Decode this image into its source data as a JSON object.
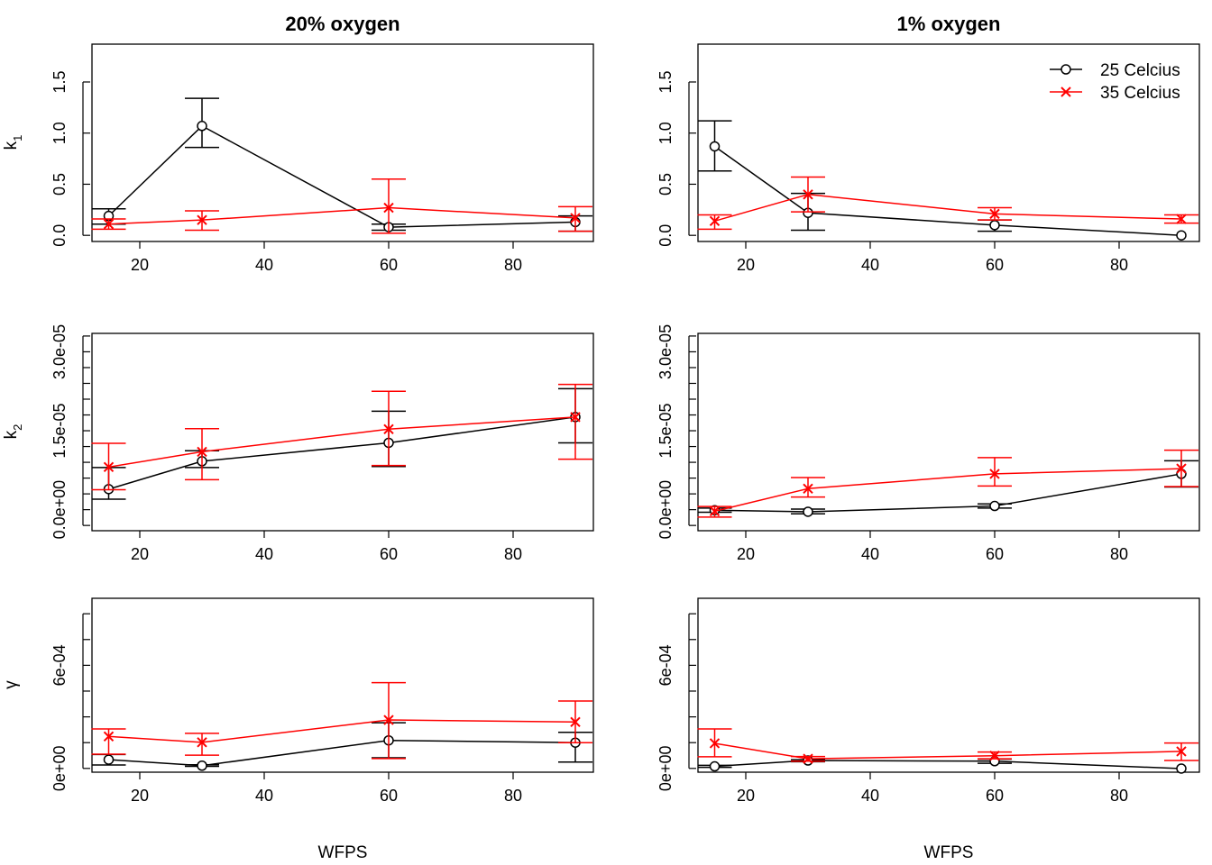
{
  "figure": {
    "col_titles": [
      "20% oxygen",
      "1% oxygen"
    ],
    "row_labels": [
      {
        "main": "k",
        "sub": "1"
      },
      {
        "main": "k",
        "sub": "2"
      },
      {
        "main": "γ",
        "sub": ""
      }
    ],
    "xlabel": "WFPS",
    "legend": {
      "placement": "top-right",
      "panel": "1% oxygen / k1",
      "entries": [
        "25 Celcius",
        "35 Celcius"
      ]
    },
    "colors": {
      "25C": "#000000",
      "35C": "#ff0000"
    }
  },
  "chart_data": [
    {
      "type": "line",
      "panel": "20% oxygen / k1",
      "x": [
        15,
        30,
        60,
        90
      ],
      "xlim": [
        12,
        93
      ],
      "xticks": [
        20,
        40,
        60,
        80
      ],
      "xtick_labels": [
        "20",
        "40",
        "60",
        "80"
      ],
      "ylim": [
        -0.06,
        1.87
      ],
      "yticks": [
        0,
        0.5,
        1.0,
        1.5
      ],
      "ytick_labels": [
        "0.0",
        "0.5",
        "1.0",
        "1.5"
      ],
      "series": [
        {
          "name": "25 Celcius",
          "marker": "circle",
          "y": [
            0.19,
            1.07,
            0.08,
            0.13
          ],
          "lower": [
            0.11,
            0.86,
            0.05,
            0.04
          ],
          "upper": [
            0.26,
            1.34,
            0.11,
            0.19
          ]
        },
        {
          "name": "35 Celcius",
          "marker": "cross",
          "y": [
            0.11,
            0.15,
            0.27,
            0.17
          ],
          "lower": [
            0.06,
            0.05,
            0.02,
            0.04
          ],
          "upper": [
            0.16,
            0.24,
            0.55,
            0.28
          ]
        }
      ]
    },
    {
      "type": "line",
      "panel": "20% oxygen / k2",
      "x": [
        15,
        30,
        60,
        90
      ],
      "xlim": [
        12,
        93
      ],
      "xticks": [
        20,
        40,
        60,
        80
      ],
      "xtick_labels": [
        "20",
        "40",
        "60",
        "80"
      ],
      "ylim": [
        -4e-06,
        3.35e-05
      ],
      "yticks": [
        -3e-06,
        0,
        3e-06,
        6e-06,
        9e-06,
        1.2e-05,
        1.5e-05,
        1.8e-05,
        2.1e-05,
        2.4e-05,
        2.7e-05,
        3e-05,
        3.3e-05
      ],
      "ytick_labels": [
        "0.0e+00",
        "1.5e-05",
        "3.0e-05"
      ],
      "series": [
        {
          "name": "25 Celcius",
          "marker": "circle",
          "y": [
            3.9e-06,
            9.2e-06,
            1.27e-05,
            1.76e-05
          ],
          "lower": [
            2e-06,
            8e-06,
            8.2e-06,
            1.27e-05
          ],
          "upper": [
            8e-06,
            1.12e-05,
            1.87e-05,
            2.3e-05
          ]
        },
        {
          "name": "35 Celcius",
          "marker": "cross",
          "y": [
            8.1e-06,
            1.1e-05,
            1.53e-05,
            1.76e-05
          ],
          "lower": [
            3.8e-06,
            5.7e-06,
            8.4e-06,
            9.6e-06
          ],
          "upper": [
            1.26e-05,
            1.54e-05,
            2.25e-05,
            2.38e-05
          ]
        }
      ]
    },
    {
      "type": "line",
      "panel": "20% oxygen / γ",
      "x": [
        15,
        30,
        60,
        90
      ],
      "xlim": [
        12,
        93
      ],
      "xticks": [
        20,
        40,
        60,
        80
      ],
      "xtick_labels": [
        "20",
        "40",
        "60",
        "80"
      ],
      "ylim": [
        -2.2e-05,
        0.00099
      ],
      "yticks": [
        0,
        0.00015,
        0.0003,
        0.00045,
        0.0006,
        0.00075,
        0.0009
      ],
      "ytick_labels": [
        "0e+00",
        "6e-04"
      ],
      "series": [
        {
          "name": "25 Celcius",
          "marker": "circle",
          "y": [
            5.1e-05,
            1.6e-05,
            0.000163,
            0.00015
          ],
          "lower": [
            2e-05,
            1.2e-05,
            6.2e-05,
            3.7e-05
          ],
          "upper": [
            8.1e-05,
            2.1e-05,
            0.000266,
            0.00021
          ]
        },
        {
          "name": "35 Celcius",
          "marker": "cross",
          "y": [
            0.000186,
            0.000152,
            0.000282,
            0.00027
          ],
          "lower": [
            8.3e-05,
            7.7e-05,
            5.7e-05,
            0.00015
          ],
          "upper": [
            0.00023,
            0.000204,
            0.000499,
            0.000392
          ]
        }
      ]
    },
    {
      "type": "line",
      "panel": "1% oxygen / k1",
      "x": [
        15,
        30,
        60,
        90
      ],
      "xlim": [
        12,
        93
      ],
      "xticks": [
        20,
        40,
        60,
        80
      ],
      "xtick_labels": [
        "20",
        "40",
        "60",
        "80"
      ],
      "ylim": [
        -0.06,
        1.87
      ],
      "yticks": [
        0,
        0.5,
        1.0,
        1.5
      ],
      "ytick_labels": [
        "0.0",
        "0.5",
        "1.0",
        "1.5"
      ],
      "series": [
        {
          "name": "25 Celcius",
          "marker": "circle",
          "y": [
            0.87,
            0.22,
            0.1,
            0.0
          ],
          "lower": [
            0.63,
            0.05,
            0.04,
            0.0
          ],
          "upper": [
            1.12,
            0.41,
            0.15,
            0.0
          ]
        },
        {
          "name": "35 Celcius",
          "marker": "cross",
          "y": [
            0.14,
            0.4,
            0.21,
            0.16
          ],
          "lower": [
            0.06,
            0.23,
            0.15,
            0.12
          ],
          "upper": [
            0.2,
            0.57,
            0.27,
            0.2
          ]
        }
      ]
    },
    {
      "type": "line",
      "panel": "1% oxygen / k2",
      "x": [
        15,
        30,
        60,
        90
      ],
      "xlim": [
        12,
        93
      ],
      "xticks": [
        20,
        40,
        60,
        80
      ],
      "xtick_labels": [
        "20",
        "40",
        "60",
        "80"
      ],
      "ylim": [
        -4e-06,
        3.35e-05
      ],
      "yticks": [
        -3e-06,
        0,
        3e-06,
        6e-06,
        9e-06,
        1.2e-05,
        1.5e-05,
        1.8e-05,
        2.1e-05,
        2.4e-05,
        2.7e-05,
        3e-05,
        3.3e-05
      ],
      "ytick_labels": [
        "0.0e+00",
        "1.5e-05",
        "3.0e-05"
      ],
      "series": [
        {
          "name": "25 Celcius",
          "marker": "circle",
          "y": [
            -1e-07,
            -4e-07,
            7e-07,
            6.8e-06
          ],
          "lower": [
            -5e-07,
            -8e-07,
            3e-07,
            4.3e-06
          ],
          "upper": [
            3e-07,
            1e-07,
            1.1e-06,
            9.3e-06
          ]
        },
        {
          "name": "35 Celcius",
          "marker": "cross",
          "y": [
            -3e-07,
            4e-06,
            6.8e-06,
            7.8e-06
          ],
          "lower": [
            -1.4e-06,
            2.4e-06,
            4.5e-06,
            4.4e-06
          ],
          "upper": [
            6e-07,
            6.1e-06,
            9.9e-06,
            1.13e-05
          ]
        }
      ]
    },
    {
      "type": "line",
      "panel": "1% oxygen / γ",
      "x": [
        15,
        30,
        60,
        90
      ],
      "xlim": [
        12,
        93
      ],
      "xticks": [
        20,
        40,
        60,
        80
      ],
      "xtick_labels": [
        "20",
        "40",
        "60",
        "80"
      ],
      "ylim": [
        -2.2e-05,
        0.00099
      ],
      "yticks": [
        0,
        0.00015,
        0.0003,
        0.00045,
        0.0006,
        0.00075,
        0.0009
      ],
      "ytick_labels": [
        "0e+00",
        "6e-04"
      ],
      "series": [
        {
          "name": "25 Celcius",
          "marker": "circle",
          "y": [
            1.2e-05,
            4.6e-05,
            4.2e-05,
            -1e-06
          ],
          "lower": [
            6e-06,
            3.9e-05,
            3e-05,
            -2e-06
          ],
          "upper": [
            1.8e-05,
            5.1e-05,
            5.4e-05,
            2e-06
          ]
        },
        {
          "name": "35 Celcius",
          "marker": "cross",
          "y": [
            0.000146,
            5.6e-05,
            7.4e-05,
            9.9e-05
          ],
          "lower": [
            6.8e-05,
            4.2e-05,
            5.6e-05,
            4.6e-05
          ],
          "upper": [
            0.00023,
            6.9e-05,
            9.5e-05,
            0.000148
          ]
        }
      ]
    }
  ]
}
